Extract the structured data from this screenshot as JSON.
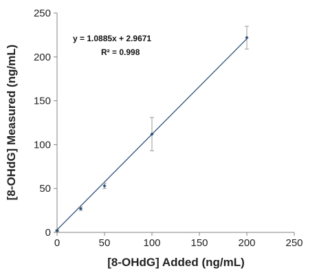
{
  "chart_data": {
    "type": "scatter",
    "xlabel": "[8-OHdG] Added (ng/mL)",
    "ylabel": "[8-OHdG] Measured (ng/mL)",
    "xlim": [
      0,
      250
    ],
    "ylim": [
      0,
      250
    ],
    "x_ticks": [
      0,
      50,
      100,
      150,
      200,
      250
    ],
    "y_ticks": [
      0,
      50,
      100,
      150,
      200,
      250
    ],
    "grid": false,
    "series": [
      {
        "points": [
          {
            "x": 0,
            "y": 2,
            "err": 1
          },
          {
            "x": 25,
            "y": 27,
            "err": 2
          },
          {
            "x": 50,
            "y": 53,
            "err": 3
          },
          {
            "x": 100,
            "y": 112,
            "err": 19
          },
          {
            "x": 200,
            "y": 222,
            "err": 13
          }
        ],
        "color": "#2e4f7a"
      }
    ],
    "trendline": {
      "slope": 1.0885,
      "intercept": 2.9671,
      "x_range": [
        0,
        200
      ],
      "color": "#2e4f7a"
    },
    "annotations": {
      "equation": "y = 1.0885x + 2.9671",
      "r_squared": "R² = 0.998"
    },
    "colors": {
      "axis": "#808080",
      "errorbar": "#999999"
    }
  }
}
